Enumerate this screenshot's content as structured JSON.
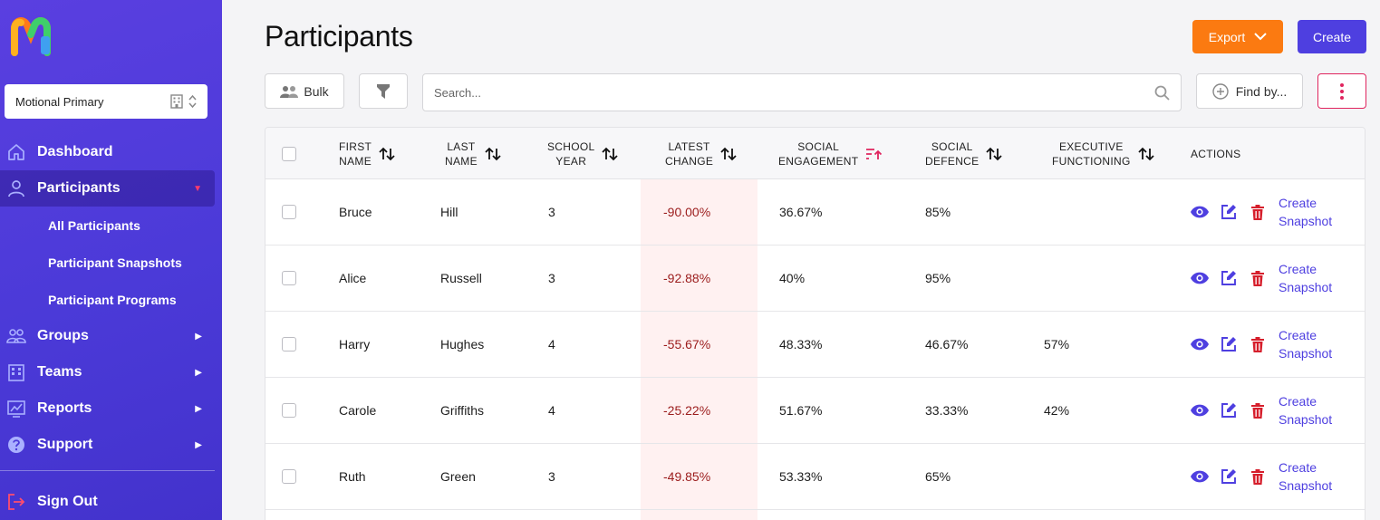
{
  "brand": {
    "accent": "#4e3fe0",
    "orange": "#fb7a11",
    "danger": "#e0245e",
    "negative_text": "#9b1c1c"
  },
  "sidebar": {
    "school_select": {
      "value": "Motional Primary",
      "icon": "building-icon"
    },
    "nav": [
      {
        "label": "Dashboard",
        "icon": "home-icon"
      },
      {
        "label": "Participants",
        "icon": "user-icon",
        "active": true
      },
      {
        "label": "Groups",
        "icon": "users-icon"
      },
      {
        "label": "Teams",
        "icon": "building-icon"
      },
      {
        "label": "Reports",
        "icon": "chart-icon"
      },
      {
        "label": "Support",
        "icon": "help-icon"
      }
    ],
    "sub_items": [
      "All Participants",
      "Participant Snapshots",
      "Participant Programs"
    ],
    "sign_out": "Sign Out"
  },
  "header": {
    "title": "Participants",
    "export_label": "Export",
    "create_label": "Create"
  },
  "toolbar": {
    "bulk_label": "Bulk",
    "search_placeholder": "Search...",
    "find_by_label": "Find by..."
  },
  "table": {
    "columns": [
      "FIRST\nNAME",
      "LAST\nNAME",
      "SCHOOL\nYEAR",
      "LATEST\nCHANGE",
      "SOCIAL\nENGAGEMENT",
      "SOCIAL\nDEFENCE",
      "EXECUTIVE\nFUNCTIONING",
      "ACTIONS"
    ],
    "action_label": "Create\nSnapshot",
    "rows": [
      {
        "first": "Bruce",
        "last": "Hill",
        "year": "3",
        "latest": "-90.00%",
        "engagement": "36.67%",
        "defence": "85%",
        "executive": ""
      },
      {
        "first": "Alice",
        "last": "Russell",
        "year": "3",
        "latest": "-92.88%",
        "engagement": "40%",
        "defence": "95%",
        "executive": ""
      },
      {
        "first": "Harry",
        "last": "Hughes",
        "year": "4",
        "latest": "-55.67%",
        "engagement": "48.33%",
        "defence": "46.67%",
        "executive": "57%"
      },
      {
        "first": "Carole",
        "last": "Griffiths",
        "year": "4",
        "latest": "-25.22%",
        "engagement": "51.67%",
        "defence": "33.33%",
        "executive": "42%"
      },
      {
        "first": "Ruth",
        "last": "Green",
        "year": "3",
        "latest": "-49.85%",
        "engagement": "53.33%",
        "defence": "65%",
        "executive": ""
      }
    ]
  }
}
